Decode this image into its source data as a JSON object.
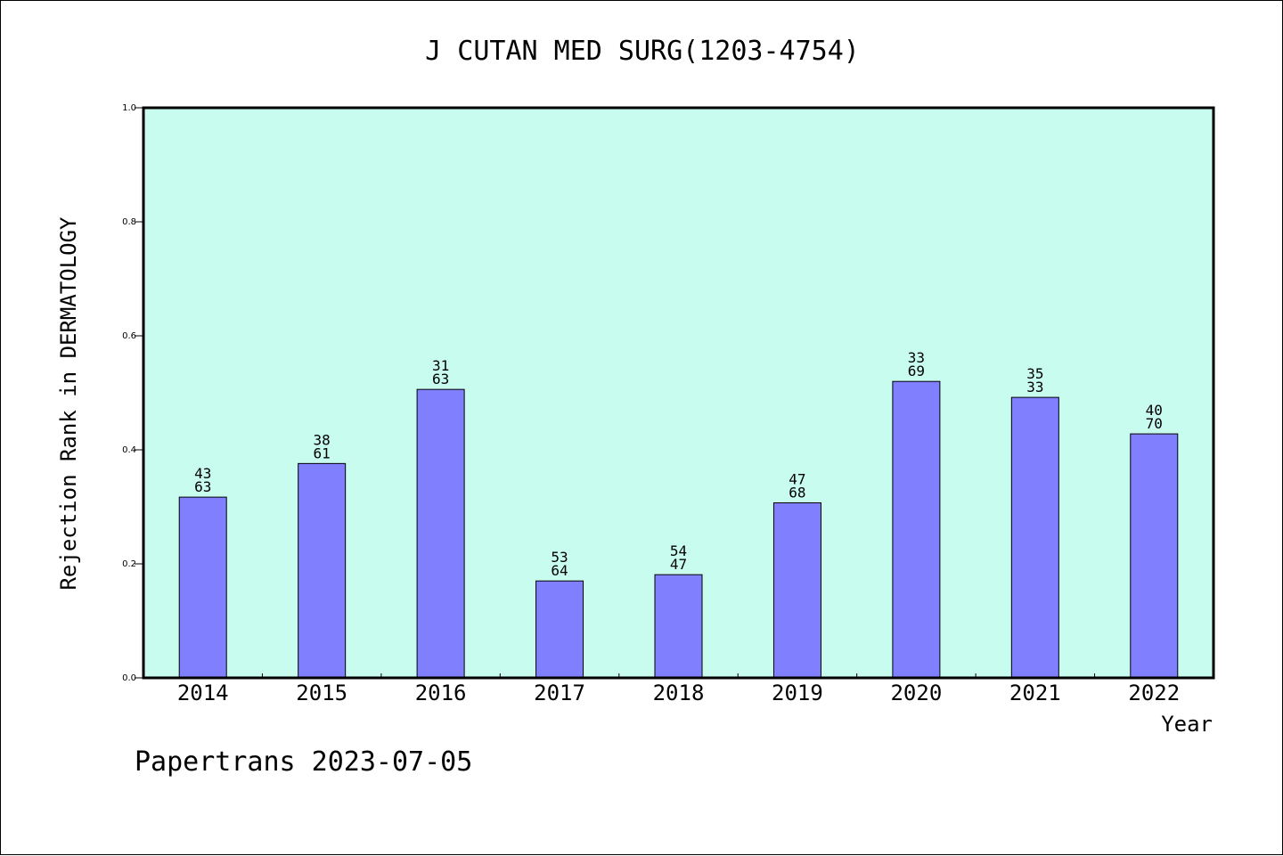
{
  "chart_data": {
    "type": "bar",
    "title": "J CUTAN MED SURG(1203-4754)",
    "xlabel": "Year",
    "ylabel": "Rejection Rank in DERMATOLOGY",
    "ylim": [
      0,
      1
    ],
    "yticks": [
      "0.0",
      "0.2",
      "0.4",
      "0.6",
      "0.8",
      "1.0"
    ],
    "categories": [
      "2014",
      "2015",
      "2016",
      "2017",
      "2018",
      "2019",
      "2020",
      "2021",
      "2022"
    ],
    "values": [
      0.317,
      0.376,
      0.506,
      0.17,
      0.181,
      0.307,
      0.52,
      0.492,
      0.428
    ],
    "bar_labels": [
      [
        "43",
        "63"
      ],
      [
        "38",
        "61"
      ],
      [
        "31",
        "63"
      ],
      [
        "53",
        "64"
      ],
      [
        "54",
        "47"
      ],
      [
        "47",
        "68"
      ],
      [
        "33",
        "69"
      ],
      [
        "35",
        "33"
      ],
      [
        "40",
        "70"
      ]
    ],
    "grid": false,
    "colors": {
      "plot_background": "#c8fcee",
      "bar_fill": "#8080ff",
      "bar_stroke": "#000000"
    }
  },
  "footer": "Papertrans 2023-07-05"
}
